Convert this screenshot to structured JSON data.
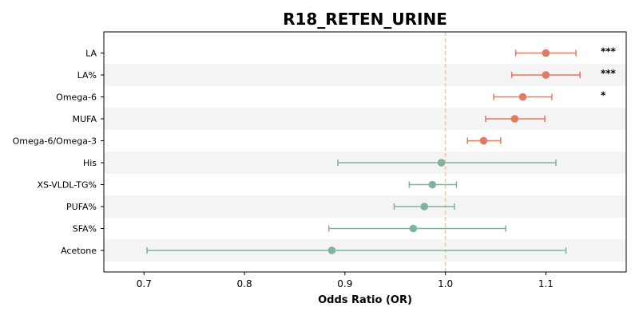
{
  "chart_data": {
    "type": "forest",
    "title": "R18_RETEN_URINE",
    "xlabel": "Odds Ratio (OR)",
    "xlim": [
      0.66,
      1.18
    ],
    "xticks": [
      "0.7",
      "0.8",
      "0.9",
      "1.0",
      "1.1"
    ],
    "reference_line": 1.0,
    "grid": false,
    "colors": {
      "significant": "#e07b60",
      "nonsignificant": "#7fb39b",
      "reference": "#f5c98b",
      "band": "#f4f4f4"
    },
    "rows": [
      {
        "label": "LA",
        "or": 1.1,
        "lo": 1.07,
        "hi": 1.13,
        "sig": "***",
        "significant": true
      },
      {
        "label": "LA%",
        "or": 1.1,
        "lo": 1.066,
        "hi": 1.134,
        "sig": "***",
        "significant": true
      },
      {
        "label": "Omega-6",
        "or": 1.077,
        "lo": 1.048,
        "hi": 1.106,
        "sig": "*",
        "significant": true
      },
      {
        "label": "MUFA",
        "or": 1.069,
        "lo": 1.04,
        "hi": 1.099,
        "sig": "",
        "significant": true
      },
      {
        "label": "Omega-6/Omega-3",
        "or": 1.038,
        "lo": 1.022,
        "hi": 1.055,
        "sig": "",
        "significant": true
      },
      {
        "label": "His",
        "or": 0.996,
        "lo": 0.893,
        "hi": 1.11,
        "sig": "",
        "significant": false
      },
      {
        "label": "XS-VLDL-TG%",
        "or": 0.987,
        "lo": 0.964,
        "hi": 1.011,
        "sig": "",
        "significant": false
      },
      {
        "label": "PUFA%",
        "or": 0.979,
        "lo": 0.949,
        "hi": 1.009,
        "sig": "",
        "significant": false
      },
      {
        "label": "SFA%",
        "or": 0.968,
        "lo": 0.884,
        "hi": 1.06,
        "sig": "",
        "significant": false
      },
      {
        "label": "Acetone",
        "or": 0.887,
        "lo": 0.703,
        "hi": 1.12,
        "sig": "",
        "significant": false
      }
    ]
  }
}
